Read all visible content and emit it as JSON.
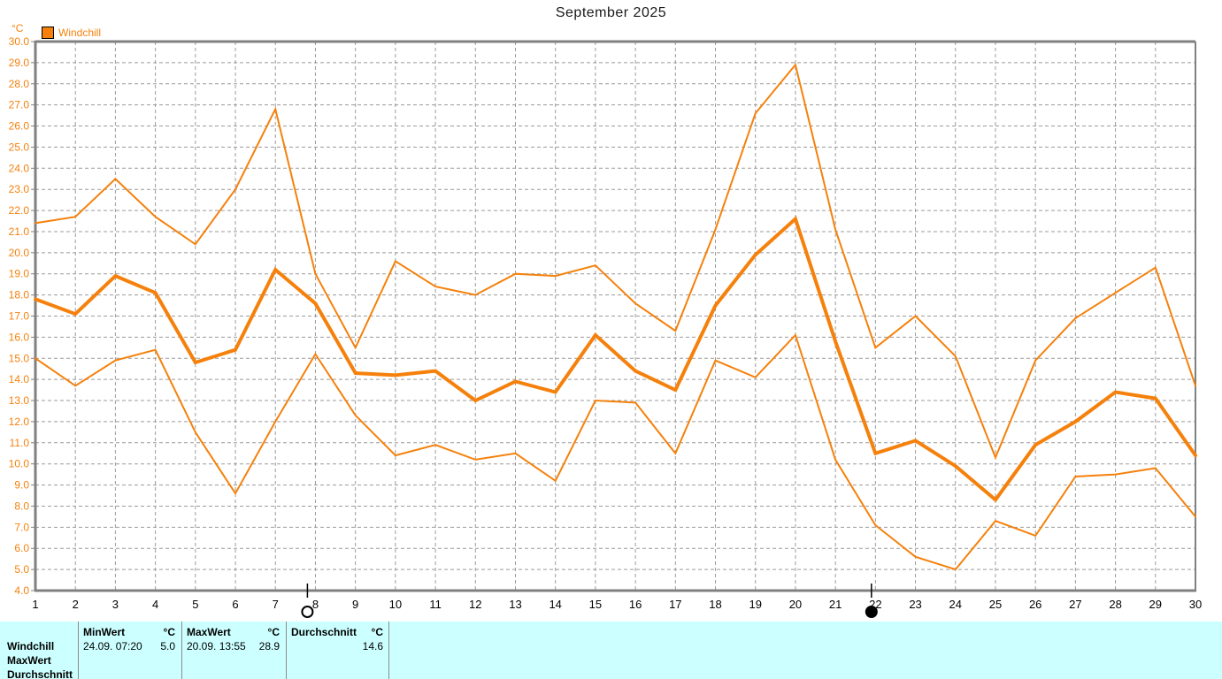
{
  "colors": {
    "accent_orange": "#F5810C",
    "grid_gray": "#9b9b9b",
    "axis_gray": "#808080",
    "table_bg": "#CCFFFF",
    "text_black": "#000000"
  },
  "chart_data": {
    "type": "line",
    "title": "September 2025",
    "y_unit": "°C",
    "legend": [
      "Windchill"
    ],
    "ylim": [
      4,
      30
    ],
    "ytick_step": 1.0,
    "ytick_labels": [
      "30.0",
      "29.0",
      "28.0",
      "27.0",
      "26.0",
      "25.0",
      "24.0",
      "23.0",
      "22.0",
      "21.0",
      "20.0",
      "19.0",
      "18.0",
      "17.0",
      "16.0",
      "15.0",
      "14.0",
      "13.0",
      "12.0",
      "11.0",
      "10.0",
      "9.0",
      "8.0",
      "7.0",
      "6.0",
      "5.0",
      "4.0"
    ],
    "x": [
      1,
      2,
      3,
      4,
      5,
      6,
      7,
      8,
      9,
      10,
      11,
      12,
      13,
      14,
      15,
      16,
      17,
      18,
      19,
      20,
      21,
      22,
      23,
      24,
      25,
      26,
      27,
      28,
      29,
      30
    ],
    "series": [
      {
        "name": "windchill-daily-max",
        "thick": false,
        "values": [
          21.4,
          21.7,
          23.5,
          21.7,
          20.4,
          23.0,
          26.8,
          19.0,
          15.5,
          19.6,
          18.4,
          18.0,
          19.0,
          18.9,
          19.4,
          17.6,
          16.3,
          21.1,
          26.6,
          28.9,
          21.1,
          15.5,
          17.0,
          15.1,
          10.3,
          14.9,
          16.9,
          18.1,
          19.3,
          13.7
        ]
      },
      {
        "name": "windchill-daily-average",
        "thick": true,
        "values": [
          17.8,
          17.1,
          18.9,
          18.1,
          14.8,
          15.4,
          19.2,
          17.6,
          14.3,
          14.2,
          14.4,
          13.0,
          13.9,
          13.4,
          16.1,
          14.4,
          13.5,
          17.5,
          19.9,
          21.6,
          15.8,
          10.5,
          11.1,
          9.9,
          8.3,
          10.9,
          12.0,
          13.4,
          13.1,
          10.4
        ]
      },
      {
        "name": "windchill-daily-min",
        "thick": false,
        "values": [
          15.0,
          13.7,
          14.9,
          15.4,
          11.5,
          8.6,
          12.0,
          15.2,
          12.3,
          10.4,
          10.9,
          10.2,
          10.5,
          9.2,
          13.0,
          12.9,
          10.5,
          14.9,
          14.1,
          16.1,
          10.2,
          7.1,
          5.6,
          5.0,
          7.3,
          6.6,
          9.4,
          9.5,
          9.8,
          7.5
        ]
      }
    ],
    "moon_markers": [
      {
        "day": 7.8,
        "symbol": "full-moon-open-circle"
      },
      {
        "day": 21.9,
        "symbol": "new-moon-filled-circle"
      }
    ],
    "grid": "dashed",
    "legend_position": "top-left"
  },
  "summary_table": {
    "row_labels": [
      "Windchill",
      "MaxWert",
      "Durchschnitt"
    ],
    "columns": [
      {
        "header": "MinWert",
        "unit": "°C",
        "windchill_datetime": "24.09.  07:20",
        "windchill_value": "5.0"
      },
      {
        "header": "MaxWert",
        "unit": "°C",
        "windchill_datetime": "20.09.  13:55",
        "windchill_value": "28.9"
      },
      {
        "header": "Durchschnitt",
        "unit": "°C",
        "windchill_datetime": "",
        "windchill_value": "14.6"
      }
    ]
  }
}
